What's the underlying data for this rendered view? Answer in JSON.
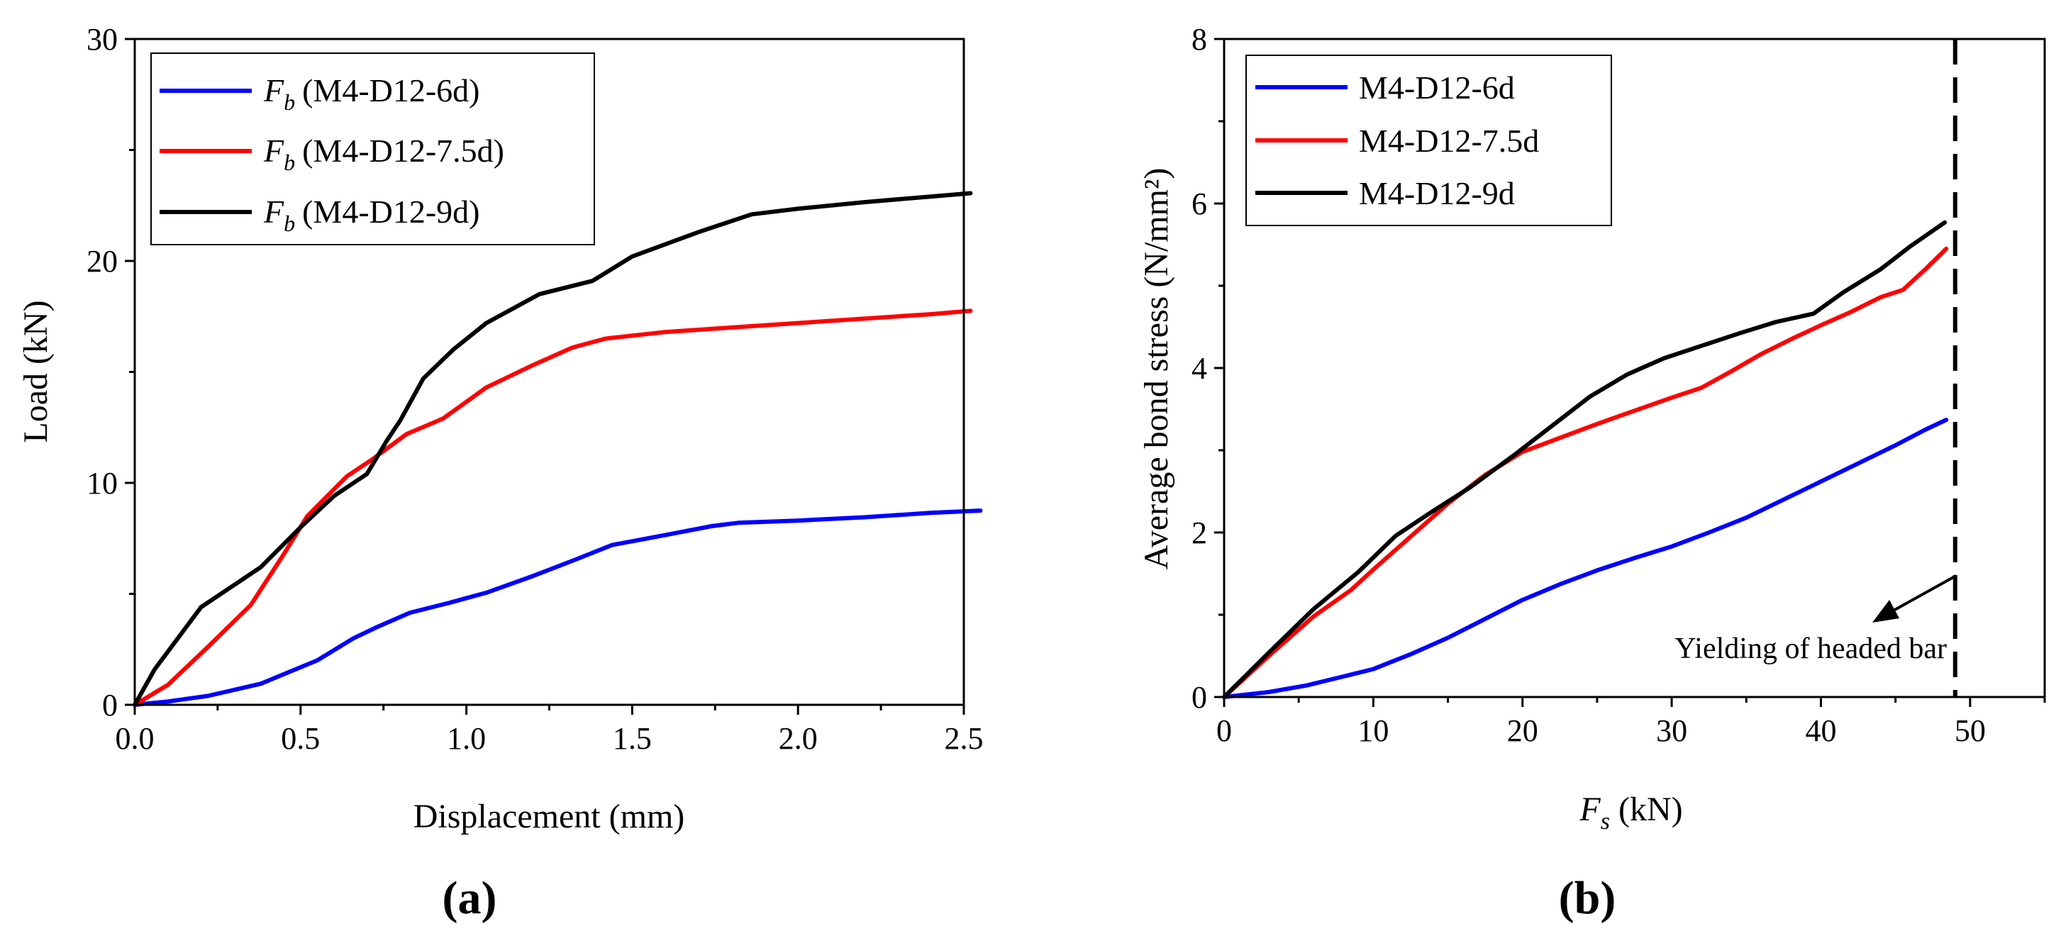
{
  "chart_data": [
    {
      "type": "line",
      "panel_label": "(a)",
      "xlabel": "Displacement (mm)",
      "ylabel": "Load (kN)",
      "xlim": [
        0,
        2.5
      ],
      "ylim": [
        0,
        30
      ],
      "xticks": [
        "0.0",
        "0.5",
        "1.0",
        "1.5",
        "2.0",
        "2.5"
      ],
      "yticks": [
        "0",
        "10",
        "20",
        "30"
      ],
      "legend_position": "top-left",
      "series": [
        {
          "name": "(M4-D12-6d)",
          "legend_symbol": "F",
          "legend_subscript": "b",
          "color": "#0000ff",
          "points": [
            [
              0,
              0
            ],
            [
              0.1,
              0.15
            ],
            [
              0.22,
              0.4
            ],
            [
              0.38,
              0.95
            ],
            [
              0.55,
              2.0
            ],
            [
              0.66,
              3.0
            ],
            [
              0.73,
              3.5
            ],
            [
              0.83,
              4.15
            ],
            [
              0.95,
              4.6
            ],
            [
              1.06,
              5.05
            ],
            [
              1.2,
              5.8
            ],
            [
              1.33,
              6.55
            ],
            [
              1.44,
              7.2
            ],
            [
              1.6,
              7.65
            ],
            [
              1.74,
              8.05
            ],
            [
              1.82,
              8.2
            ],
            [
              2.0,
              8.3
            ],
            [
              2.2,
              8.45
            ],
            [
              2.4,
              8.65
            ],
            [
              2.55,
              8.75
            ]
          ]
        },
        {
          "name": "(M4-D12-7.5d)",
          "legend_symbol": "F",
          "legend_subscript": "b",
          "color": "#ff0000",
          "points": [
            [
              0,
              0
            ],
            [
              0.1,
              0.9
            ],
            [
              0.22,
              2.6
            ],
            [
              0.35,
              4.5
            ],
            [
              0.45,
              6.8
            ],
            [
              0.52,
              8.5
            ],
            [
              0.6,
              9.7
            ],
            [
              0.64,
              10.3
            ],
            [
              0.72,
              11.1
            ],
            [
              0.82,
              12.2
            ],
            [
              0.93,
              12.9
            ],
            [
              1.06,
              14.3
            ],
            [
              1.2,
              15.3
            ],
            [
              1.32,
              16.1
            ],
            [
              1.42,
              16.5
            ],
            [
              1.6,
              16.8
            ],
            [
              1.8,
              17.0
            ],
            [
              2.0,
              17.2
            ],
            [
              2.2,
              17.4
            ],
            [
              2.4,
              17.6
            ],
            [
              2.52,
              17.75
            ]
          ]
        },
        {
          "name": "(M4-D12-9d)",
          "legend_symbol": "F",
          "legend_subscript": "b",
          "color": "#000000",
          "points": [
            [
              0,
              0
            ],
            [
              0.06,
              1.6
            ],
            [
              0.2,
              4.4
            ],
            [
              0.38,
              6.2
            ],
            [
              0.5,
              8.0
            ],
            [
              0.6,
              9.4
            ],
            [
              0.7,
              10.4
            ],
            [
              0.76,
              11.9
            ],
            [
              0.8,
              12.8
            ],
            [
              0.87,
              14.7
            ],
            [
              0.96,
              16.0
            ],
            [
              1.06,
              17.2
            ],
            [
              1.22,
              18.5
            ],
            [
              1.38,
              19.1
            ],
            [
              1.5,
              20.2
            ],
            [
              1.7,
              21.3
            ],
            [
              1.86,
              22.1
            ],
            [
              2.0,
              22.35
            ],
            [
              2.2,
              22.65
            ],
            [
              2.4,
              22.9
            ],
            [
              2.52,
              23.05
            ]
          ]
        }
      ]
    },
    {
      "type": "line",
      "panel_label": "(b)",
      "xlabel_symbol": "F",
      "xlabel_subscript": "s",
      "xlabel": "(kN)",
      "ylabel": "Average bond stress (N/mm²)",
      "xlim": [
        0,
        55
      ],
      "ylim": [
        0,
        8
      ],
      "xticks": [
        "0",
        "10",
        "20",
        "30",
        "40",
        "50"
      ],
      "yticks": [
        "0",
        "2",
        "4",
        "6",
        "8"
      ],
      "legend_position": "top-left",
      "vertical_reference_line": {
        "x": 49,
        "style": "dashed"
      },
      "annotation": "Yielding of headed bar",
      "series": [
        {
          "name": "M4-D12-6d",
          "color": "#0000ff",
          "points": [
            [
              0,
              0
            ],
            [
              3,
              0.06
            ],
            [
              5.5,
              0.14
            ],
            [
              8,
              0.25
            ],
            [
              10,
              0.34
            ],
            [
              12.5,
              0.52
            ],
            [
              15,
              0.72
            ],
            [
              17.5,
              0.95
            ],
            [
              20,
              1.18
            ],
            [
              22.5,
              1.37
            ],
            [
              25,
              1.54
            ],
            [
              27.5,
              1.69
            ],
            [
              30,
              1.83
            ],
            [
              32.5,
              2.0
            ],
            [
              35,
              2.18
            ],
            [
              37.5,
              2.4
            ],
            [
              40,
              2.62
            ],
            [
              42.5,
              2.84
            ],
            [
              45,
              3.06
            ],
            [
              47,
              3.25
            ],
            [
              48.4,
              3.37
            ]
          ]
        },
        {
          "name": "M4-D12-7.5d",
          "color": "#ff0000",
          "points": [
            [
              0,
              0
            ],
            [
              3,
              0.5
            ],
            [
              6,
              0.98
            ],
            [
              8.5,
              1.3
            ],
            [
              10,
              1.55
            ],
            [
              12.5,
              1.95
            ],
            [
              15,
              2.35
            ],
            [
              17.5,
              2.7
            ],
            [
              20,
              2.98
            ],
            [
              22.5,
              3.15
            ],
            [
              25,
              3.32
            ],
            [
              27.5,
              3.48
            ],
            [
              30,
              3.64
            ],
            [
              32,
              3.76
            ],
            [
              34,
              3.96
            ],
            [
              36,
              4.17
            ],
            [
              38,
              4.35
            ],
            [
              40,
              4.52
            ],
            [
              42,
              4.68
            ],
            [
              44,
              4.86
            ],
            [
              45.5,
              4.95
            ],
            [
              47,
              5.2
            ],
            [
              48.4,
              5.45
            ]
          ]
        },
        {
          "name": "M4-D12-9d",
          "color": "#000000",
          "points": [
            [
              0,
              0
            ],
            [
              3,
              0.54
            ],
            [
              6,
              1.07
            ],
            [
              9,
              1.52
            ],
            [
              11.5,
              1.96
            ],
            [
              14,
              2.26
            ],
            [
              16.5,
              2.55
            ],
            [
              19.5,
              2.95
            ],
            [
              22,
              3.3
            ],
            [
              24.5,
              3.65
            ],
            [
              27,
              3.92
            ],
            [
              29.5,
              4.12
            ],
            [
              32,
              4.27
            ],
            [
              34.5,
              4.42
            ],
            [
              37,
              4.56
            ],
            [
              39.5,
              4.66
            ],
            [
              41.5,
              4.92
            ],
            [
              44,
              5.2
            ],
            [
              46,
              5.48
            ],
            [
              48.3,
              5.77
            ]
          ]
        }
      ]
    }
  ]
}
